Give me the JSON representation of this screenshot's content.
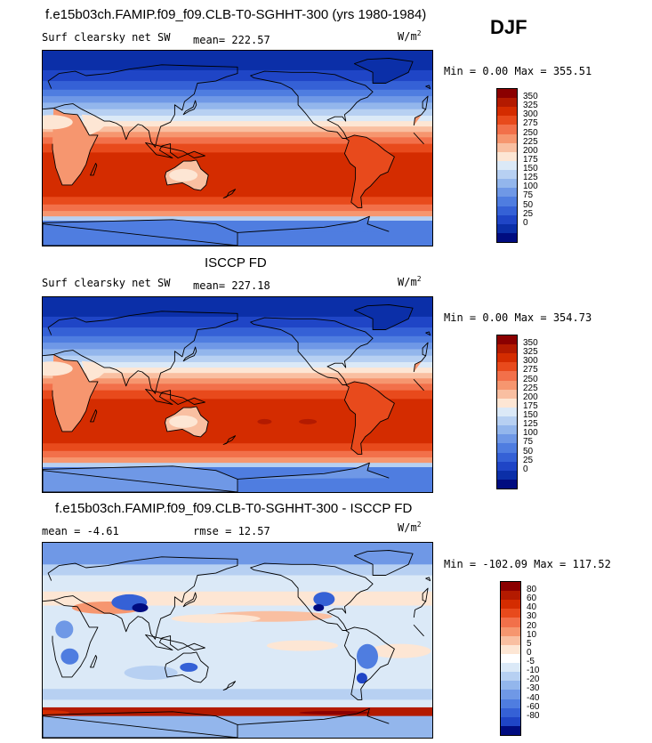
{
  "season": "DJF",
  "panels": [
    {
      "title": "f.e15b03ch.FAMIP.f09_f09.CLB-T0-SGHHT-300 (yrs 1980-1984)",
      "variable": "Surf clearsky net SW",
      "stat1": "mean= 222.57",
      "stat2": "",
      "units": "W/m",
      "units_exp": "2",
      "minmax": "Min =   0.00 Max = 355.51",
      "colorbar_labels": [
        "350",
        "325",
        "300",
        "275",
        "250",
        "225",
        "200",
        "175",
        "150",
        "125",
        "100",
        "75",
        "50",
        "25",
        "0"
      ],
      "colorbar_colors": [
        "#8b0000",
        "#b31a00",
        "#d42c00",
        "#e84a1c",
        "#f2704a",
        "#f6966f",
        "#f9bfa1",
        "#fde6d4",
        "#dbe9f7",
        "#b7d0f2",
        "#93b6ec",
        "#6f98e6",
        "#4f7de0",
        "#3561d6",
        "#1f45c6",
        "#0b2fa8",
        "#000c80"
      ]
    },
    {
      "title": "ISCCP FD",
      "variable": "Surf clearsky net SW",
      "stat1": "mean= 227.18",
      "stat2": "",
      "units": "W/m",
      "units_exp": "2",
      "minmax": "Min =   0.00 Max = 354.73",
      "colorbar_labels": [
        "350",
        "325",
        "300",
        "275",
        "250",
        "225",
        "200",
        "175",
        "150",
        "125",
        "100",
        "75",
        "50",
        "25",
        "0"
      ],
      "colorbar_colors": [
        "#8b0000",
        "#b31a00",
        "#d42c00",
        "#e84a1c",
        "#f2704a",
        "#f6966f",
        "#f9bfa1",
        "#fde6d4",
        "#dbe9f7",
        "#b7d0f2",
        "#93b6ec",
        "#6f98e6",
        "#4f7de0",
        "#3561d6",
        "#1f45c6",
        "#0b2fa8",
        "#000c80"
      ]
    },
    {
      "title": "f.e15b03ch.FAMIP.f09_f09.CLB-T0-SGHHT-300 - ISCCP FD",
      "variable": "",
      "stat1": "mean =   -4.61",
      "stat2": "rmse =   12.57",
      "units": "W/m",
      "units_exp": "2",
      "minmax": "Min = -102.09 Max = 117.52",
      "colorbar_labels": [
        "80",
        "60",
        "40",
        "30",
        "20",
        "10",
        "5",
        "0",
        "-5",
        "-10",
        "-20",
        "-30",
        "-40",
        "-60",
        "-80"
      ],
      "colorbar_colors": [
        "#8b0000",
        "#b31a00",
        "#d42c00",
        "#e84a1c",
        "#f2704a",
        "#f6966f",
        "#f9bfa1",
        "#fde6d4",
        "#ffffff",
        "#dbe9f7",
        "#b7d0f2",
        "#93b6ec",
        "#6f98e6",
        "#4f7de0",
        "#3561d6",
        "#1f45c6",
        "#000c80"
      ]
    }
  ]
}
